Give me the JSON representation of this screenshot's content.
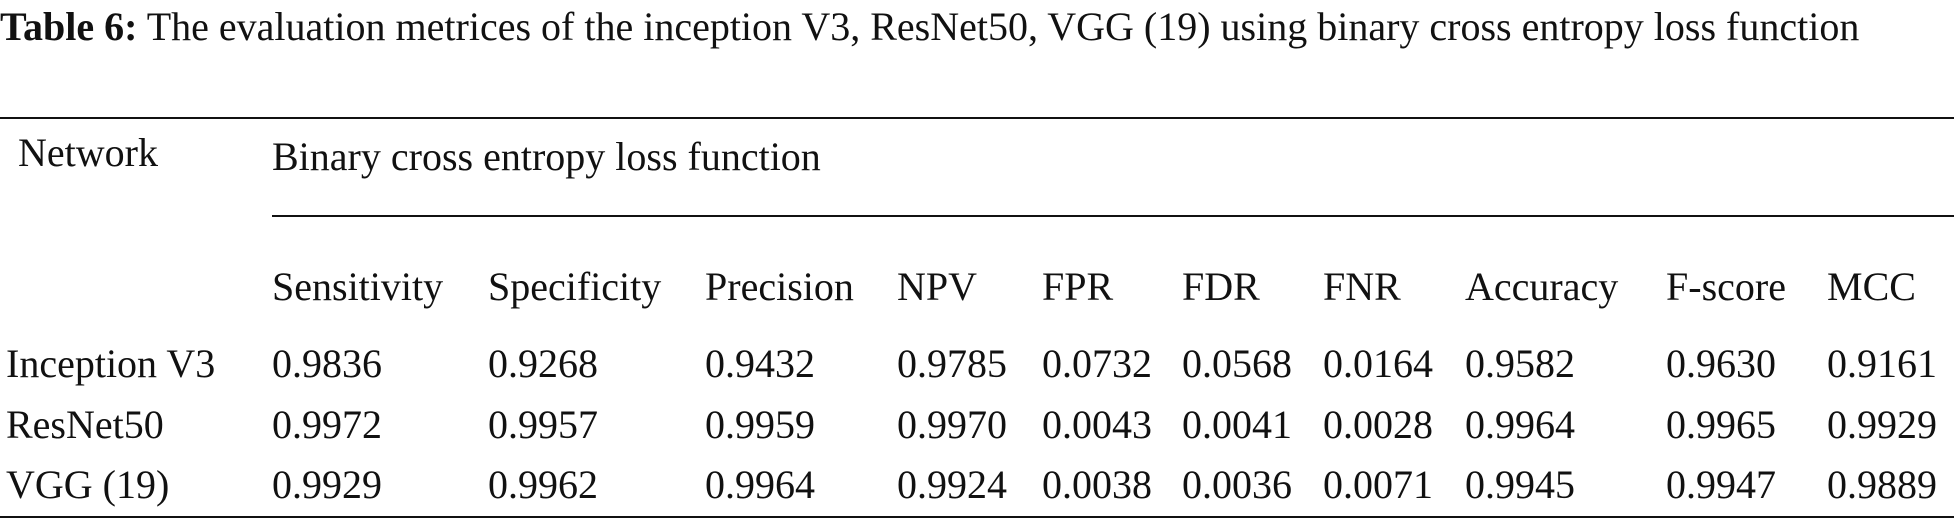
{
  "caption": {
    "label": "Table 6:",
    "text": "The evaluation metrices of the inception V3, ResNet50, VGG (19) using binary cross entropy loss function"
  },
  "table": {
    "row_header": "Network",
    "group_header": "Binary cross entropy loss function",
    "columns": [
      "Sensitivity",
      "Specificity",
      "Precision",
      "NPV",
      "FPR",
      "FDR",
      "FNR",
      "Accuracy",
      "F-score",
      "MCC"
    ],
    "rows": [
      [
        "Inception V3",
        "0.9836",
        "0.9268",
        "0.9432",
        "0.9785",
        "0.0732",
        "0.0568",
        "0.0164",
        "0.9582",
        "0.9630",
        "0.9161"
      ],
      [
        "ResNet50",
        "0.9972",
        "0.9957",
        "0.9959",
        "0.9970",
        "0.0043",
        "0.0041",
        "0.0028",
        "0.9964",
        "0.9965",
        "0.9929"
      ],
      [
        "VGG (19)",
        "0.9929",
        "0.9962",
        "0.9964",
        "0.9924",
        "0.0038",
        "0.0036",
        "0.0071",
        "0.9945",
        "0.9947",
        "0.9889"
      ]
    ]
  }
}
